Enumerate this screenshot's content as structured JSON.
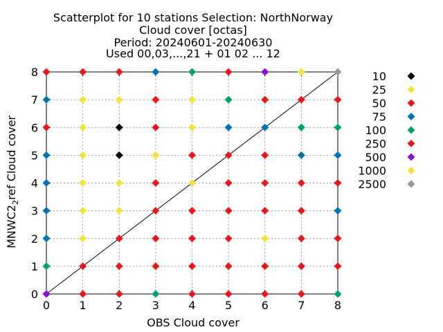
{
  "chart_data": {
    "type": "scatter",
    "title_lines": [
      "Scatterplot for   10 stations Selection: NorthNorway",
      "Cloud cover [octas]",
      "Period: 20240601-20240630",
      "Used 00,03,...,21 + 01 02 ... 12"
    ],
    "xlabel": "OBS Cloud cover",
    "ylabel": "MNWC22ref Cloud cover",
    "ylabel_prefix": "MNWC2",
    "ylabel_sub": "2",
    "ylabel_suffix": "ref Cloud cover",
    "xlim": [
      0,
      8
    ],
    "ylim": [
      0,
      8
    ],
    "xticks": [
      "0",
      "1",
      "2",
      "3",
      "4",
      "5",
      "6",
      "7",
      "8"
    ],
    "yticks": [
      "0",
      "1",
      "2",
      "3",
      "4",
      "5",
      "6",
      "7",
      "8"
    ],
    "grid": true,
    "diagonal": true,
    "legend_position": "right",
    "legend": [
      {
        "label": "10",
        "color": "#000000"
      },
      {
        "label": "25",
        "color": "#f0e442"
      },
      {
        "label": "50",
        "color": "#e41a1c"
      },
      {
        "label": "75",
        "color": "#0072b2"
      },
      {
        "label": "100",
        "color": "#009e73"
      },
      {
        "label": "250",
        "color": "#e41a1c"
      },
      {
        "label": "500",
        "color": "#8a0ccf"
      },
      {
        "label": "1000",
        "color": "#f0e442"
      },
      {
        "label": "2500",
        "color": "#999999"
      }
    ],
    "points": [
      {
        "x": 0,
        "y": 8,
        "bin": "50"
      },
      {
        "x": 1,
        "y": 8,
        "bin": "50"
      },
      {
        "x": 2,
        "y": 8,
        "bin": "50"
      },
      {
        "x": 3,
        "y": 8,
        "bin": "75"
      },
      {
        "x": 4,
        "y": 8,
        "bin": "100"
      },
      {
        "x": 5,
        "y": 8,
        "bin": "50"
      },
      {
        "x": 6,
        "y": 8,
        "bin": "500"
      },
      {
        "x": 7,
        "y": 8,
        "bin": "25"
      },
      {
        "x": 8,
        "y": 8,
        "bin": "2500"
      },
      {
        "x": 0,
        "y": 7,
        "bin": "75"
      },
      {
        "x": 1,
        "y": 7,
        "bin": "25"
      },
      {
        "x": 2,
        "y": 7,
        "bin": "25"
      },
      {
        "x": 3,
        "y": 7,
        "bin": "50"
      },
      {
        "x": 4,
        "y": 7,
        "bin": "25"
      },
      {
        "x": 5,
        "y": 7,
        "bin": "100"
      },
      {
        "x": 6,
        "y": 7,
        "bin": "50"
      },
      {
        "x": 7,
        "y": 7,
        "bin": "50"
      },
      {
        "x": 8,
        "y": 7,
        "bin": "50"
      },
      {
        "x": 0,
        "y": 6,
        "bin": "50"
      },
      {
        "x": 1,
        "y": 6,
        "bin": "25"
      },
      {
        "x": 2,
        "y": 6,
        "bin": "10"
      },
      {
        "x": 3,
        "y": 6,
        "bin": "50"
      },
      {
        "x": 4,
        "y": 6,
        "bin": "25"
      },
      {
        "x": 5,
        "y": 6,
        "bin": "75"
      },
      {
        "x": 6,
        "y": 6,
        "bin": "75"
      },
      {
        "x": 7,
        "y": 6,
        "bin": "100"
      },
      {
        "x": 8,
        "y": 6,
        "bin": "100"
      },
      {
        "x": 0,
        "y": 5,
        "bin": "75"
      },
      {
        "x": 1,
        "y": 5,
        "bin": "25"
      },
      {
        "x": 2,
        "y": 5,
        "bin": "10"
      },
      {
        "x": 3,
        "y": 5,
        "bin": "25"
      },
      {
        "x": 4,
        "y": 5,
        "bin": "50"
      },
      {
        "x": 5,
        "y": 5,
        "bin": "50"
      },
      {
        "x": 6,
        "y": 5,
        "bin": "50"
      },
      {
        "x": 7,
        "y": 5,
        "bin": "75"
      },
      {
        "x": 8,
        "y": 5,
        "bin": "75"
      },
      {
        "x": 0,
        "y": 4,
        "bin": "75"
      },
      {
        "x": 1,
        "y": 4,
        "bin": "25"
      },
      {
        "x": 2,
        "y": 4,
        "bin": "25"
      },
      {
        "x": 3,
        "y": 4,
        "bin": "50"
      },
      {
        "x": 4,
        "y": 4,
        "bin": "25"
      },
      {
        "x": 5,
        "y": 4,
        "bin": "50"
      },
      {
        "x": 6,
        "y": 4,
        "bin": "50"
      },
      {
        "x": 7,
        "y": 4,
        "bin": "50"
      },
      {
        "x": 8,
        "y": 4,
        "bin": "50"
      },
      {
        "x": 0,
        "y": 3,
        "bin": "75"
      },
      {
        "x": 1,
        "y": 3,
        "bin": "25"
      },
      {
        "x": 2,
        "y": 3,
        "bin": "25"
      },
      {
        "x": 3,
        "y": 3,
        "bin": "50"
      },
      {
        "x": 4,
        "y": 3,
        "bin": "50"
      },
      {
        "x": 5,
        "y": 3,
        "bin": "50"
      },
      {
        "x": 6,
        "y": 3,
        "bin": "50"
      },
      {
        "x": 7,
        "y": 3,
        "bin": "50"
      },
      {
        "x": 8,
        "y": 3,
        "bin": "75"
      },
      {
        "x": 0,
        "y": 2,
        "bin": "75"
      },
      {
        "x": 1,
        "y": 2,
        "bin": "25"
      },
      {
        "x": 2,
        "y": 2,
        "bin": "50"
      },
      {
        "x": 3,
        "y": 2,
        "bin": "50"
      },
      {
        "x": 4,
        "y": 2,
        "bin": "50"
      },
      {
        "x": 5,
        "y": 2,
        "bin": "50"
      },
      {
        "x": 6,
        "y": 2,
        "bin": "25"
      },
      {
        "x": 7,
        "y": 2,
        "bin": "50"
      },
      {
        "x": 8,
        "y": 2,
        "bin": "50"
      },
      {
        "x": 0,
        "y": 1,
        "bin": "100"
      },
      {
        "x": 1,
        "y": 1,
        "bin": "50"
      },
      {
        "x": 2,
        "y": 1,
        "bin": "50"
      },
      {
        "x": 3,
        "y": 1,
        "bin": "50"
      },
      {
        "x": 4,
        "y": 1,
        "bin": "50"
      },
      {
        "x": 5,
        "y": 1,
        "bin": "50"
      },
      {
        "x": 6,
        "y": 1,
        "bin": "50"
      },
      {
        "x": 7,
        "y": 1,
        "bin": "50"
      },
      {
        "x": 8,
        "y": 1,
        "bin": "50"
      },
      {
        "x": 0,
        "y": 0,
        "bin": "500"
      },
      {
        "x": 1,
        "y": 0,
        "bin": "50"
      },
      {
        "x": 2,
        "y": 0,
        "bin": "50"
      },
      {
        "x": 3,
        "y": 0,
        "bin": "100"
      },
      {
        "x": 4,
        "y": 0,
        "bin": "50"
      },
      {
        "x": 5,
        "y": 0,
        "bin": "50"
      },
      {
        "x": 6,
        "y": 0,
        "bin": "50"
      },
      {
        "x": 7,
        "y": 0,
        "bin": "50"
      },
      {
        "x": 8,
        "y": 0,
        "bin": "100"
      }
    ]
  }
}
